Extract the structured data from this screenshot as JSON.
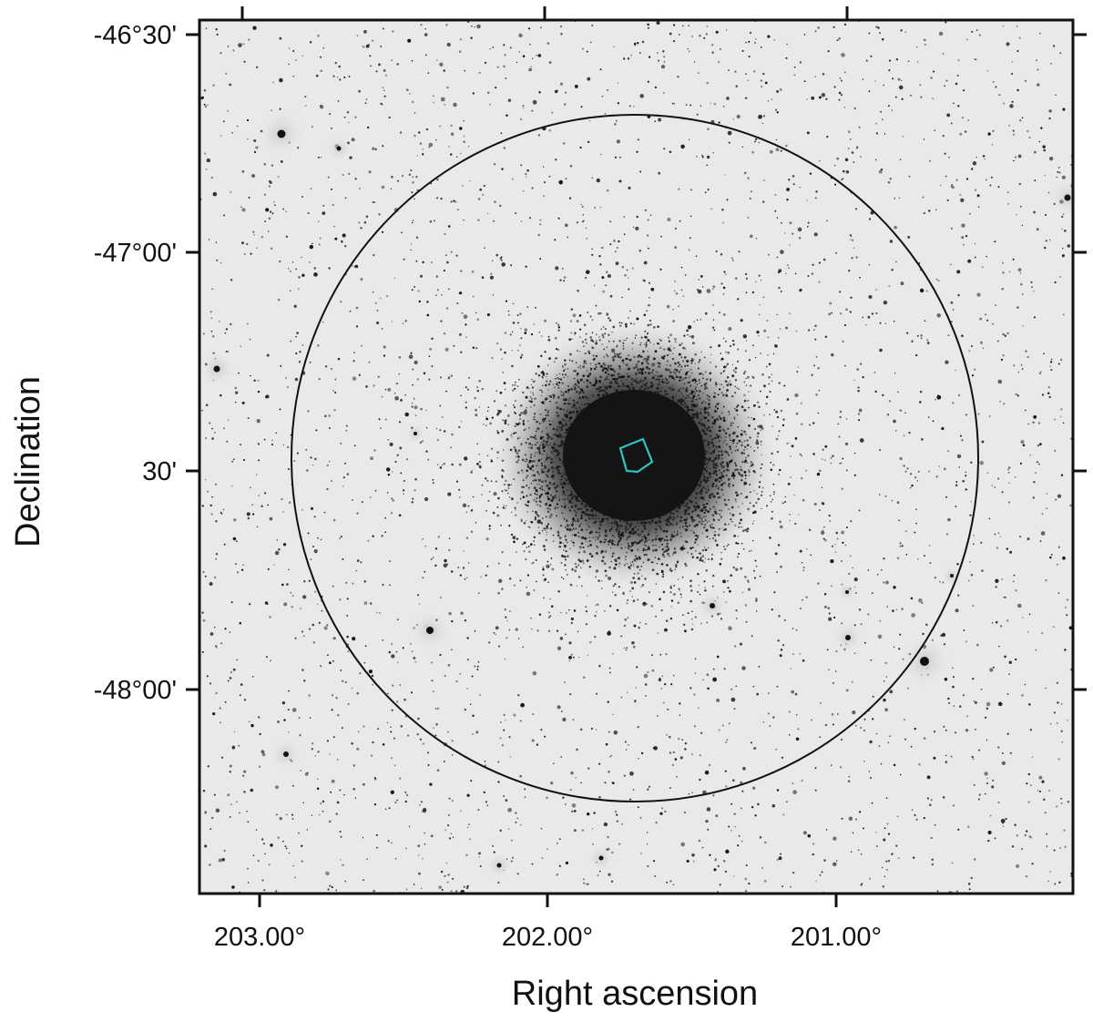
{
  "figure": {
    "xlabel": "Right ascension",
    "ylabel": "Declination",
    "x_ticks": [
      "203.00°",
      "202.00°",
      "201.00°"
    ],
    "y_ticks": [
      "-46°30'",
      "-47°00'",
      "30'",
      "-48°00'"
    ]
  },
  "image": {
    "background_color": "#e9e9e9",
    "star_color": "#111111",
    "frame_color": "#111111",
    "circle_color": "#111111",
    "footprint_color": "#33c2c2"
  }
}
